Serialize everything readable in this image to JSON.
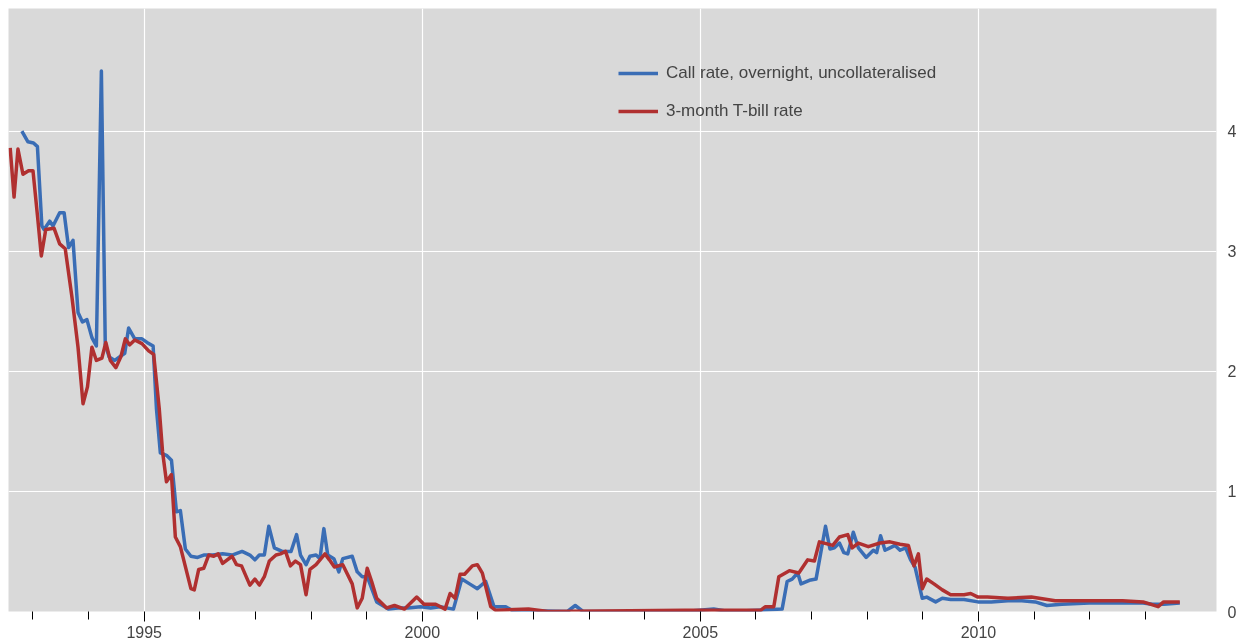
{
  "chart_data": {
    "type": "line",
    "xlim": [
      1992.56,
      2014.28
    ],
    "ylim": [
      0,
      5.02
    ],
    "xticks": [
      {
        "value": 1993,
        "label": null
      },
      {
        "value": 1994,
        "label": null
      },
      1995,
      {
        "value": 1996,
        "label": null
      },
      {
        "value": 1997,
        "label": null
      },
      {
        "value": 1998,
        "label": null
      },
      {
        "value": 1999,
        "label": null
      },
      2000,
      {
        "value": 2001,
        "label": null
      },
      {
        "value": 2002,
        "label": null
      },
      {
        "value": 2003,
        "label": null
      },
      {
        "value": 2004,
        "label": null
      },
      2005,
      {
        "value": 2006,
        "label": null
      },
      {
        "value": 2007,
        "label": null
      },
      {
        "value": 2008,
        "label": null
      },
      {
        "value": 2009,
        "label": null
      },
      2010,
      {
        "value": 2011,
        "label": null
      },
      {
        "value": 2012,
        "label": null
      },
      {
        "value": 2013,
        "label": null
      }
    ],
    "yticks": [
      0,
      1,
      2,
      3,
      4
    ],
    "grid": true,
    "legend": "top right",
    "marker": "none",
    "line_style": "solid",
    "series": [
      {
        "name": "Call rate, overnight, uncollateralised",
        "color": "#3a6db5",
        "x": [
          1992.8,
          1992.91,
          1993.01,
          1993.08,
          1993.16,
          1993.2,
          1993.3,
          1993.36,
          1993.48,
          1993.56,
          1993.64,
          1993.72,
          1993.81,
          1993.89,
          1993.97,
          1994.06,
          1994.14,
          1994.23,
          1994.3,
          1994.37,
          1994.47,
          1994.65,
          1994.72,
          1994.83,
          1994.96,
          1995.05,
          1995.16,
          1995.22,
          1995.29,
          1995.4,
          1995.49,
          1995.58,
          1995.65,
          1995.74,
          1995.84,
          1995.96,
          1996.07,
          1996.23,
          1996.41,
          1996.58,
          1996.76,
          1996.9,
          1996.99,
          1997.07,
          1997.16,
          1997.24,
          1997.34,
          1997.48,
          1997.64,
          1997.74,
          1997.81,
          1997.91,
          1997.98,
          1998.09,
          1998.16,
          1998.23,
          1998.3,
          1998.41,
          1998.5,
          1998.57,
          1998.74,
          1998.83,
          1998.92,
          1999.01,
          1999.18,
          1999.39,
          1999.56,
          1999.74,
          1999.97,
          2000.15,
          2000.32,
          2000.56,
          2000.71,
          2000.85,
          2000.99,
          2001.14,
          2001.29,
          2001.5,
          2001.61,
          2002.61,
          2002.75,
          2002.89,
          2004.72,
          2005.24,
          2005.51,
          2006.47,
          2006.56,
          2006.65,
          2006.75,
          2006.81,
          2006.96,
          2007.08,
          2007.25,
          2007.33,
          2007.41,
          2007.5,
          2007.58,
          2007.65,
          2007.75,
          2007.84,
          2007.98,
          2008.11,
          2008.17,
          2008.24,
          2008.32,
          2008.41,
          2008.5,
          2008.59,
          2008.69,
          2008.78,
          2008.86,
          2008.99,
          2009.07,
          2009.23,
          2009.35,
          2009.5,
          2009.74,
          2009.99,
          2010.23,
          2010.53,
          2010.78,
          2011.02,
          2011.23,
          2011.5,
          2011.99,
          2012.46,
          2012.96,
          2013.13,
          2013.33,
          2013.62
        ],
        "values": [
          4.0,
          3.91,
          3.9,
          3.87,
          3.21,
          3.18,
          3.25,
          3.21,
          3.32,
          3.32,
          3.03,
          3.09,
          2.49,
          2.41,
          2.43,
          2.28,
          2.21,
          4.5,
          2.22,
          2.12,
          2.09,
          2.15,
          2.36,
          2.27,
          2.27,
          2.24,
          2.21,
          1.69,
          1.32,
          1.3,
          1.26,
          0.83,
          0.84,
          0.52,
          0.46,
          0.45,
          0.47,
          0.47,
          0.48,
          0.47,
          0.5,
          0.47,
          0.43,
          0.47,
          0.47,
          0.71,
          0.53,
          0.5,
          0.5,
          0.64,
          0.47,
          0.39,
          0.46,
          0.47,
          0.44,
          0.69,
          0.47,
          0.44,
          0.33,
          0.44,
          0.46,
          0.33,
          0.29,
          0.29,
          0.08,
          0.02,
          0.03,
          0.03,
          0.04,
          0.03,
          0.04,
          0.02,
          0.27,
          0.23,
          0.19,
          0.25,
          0.04,
          0.04,
          0.01,
          0.0,
          0.05,
          0.0,
          0.0,
          0.02,
          0.0,
          0.02,
          0.25,
          0.27,
          0.32,
          0.23,
          0.26,
          0.27,
          0.71,
          0.52,
          0.53,
          0.57,
          0.49,
          0.48,
          0.66,
          0.53,
          0.45,
          0.51,
          0.49,
          0.63,
          0.51,
          0.53,
          0.55,
          0.51,
          0.53,
          0.43,
          0.37,
          0.11,
          0.12,
          0.08,
          0.11,
          0.1,
          0.1,
          0.08,
          0.08,
          0.09,
          0.09,
          0.08,
          0.05,
          0.06,
          0.07,
          0.07,
          0.07,
          0.06,
          0.06,
          0.07
        ]
      },
      {
        "name": "3-month T-bill rate",
        "color": "#b03030",
        "x": [
          1992.59,
          1992.66,
          1992.73,
          1992.82,
          1992.92,
          1993.0,
          1993.08,
          1993.15,
          1993.23,
          1993.38,
          1993.48,
          1993.58,
          1993.7,
          1993.81,
          1993.9,
          1993.98,
          1994.06,
          1994.14,
          1994.24,
          1994.31,
          1994.39,
          1994.49,
          1994.58,
          1994.66,
          1994.74,
          1994.83,
          1994.96,
          1995.08,
          1995.17,
          1995.27,
          1995.33,
          1995.4,
          1995.49,
          1995.56,
          1995.65,
          1995.84,
          1995.9,
          1995.98,
          1996.07,
          1996.16,
          1996.25,
          1996.33,
          1996.41,
          1996.58,
          1996.66,
          1996.75,
          1996.9,
          1996.99,
          1997.07,
          1997.16,
          1997.25,
          1997.37,
          1997.45,
          1997.54,
          1997.63,
          1997.72,
          1997.81,
          1997.91,
          1997.98,
          1998.09,
          1998.25,
          1998.33,
          1998.42,
          1998.57,
          1998.74,
          1998.83,
          1998.92,
          1999.01,
          1999.09,
          1999.18,
          1999.36,
          1999.5,
          1999.68,
          1999.9,
          2000.03,
          2000.24,
          2000.41,
          2000.5,
          2000.59,
          2000.68,
          2000.76,
          2000.9,
          2000.99,
          2001.08,
          2001.23,
          2001.32,
          2001.91,
          2002.26,
          2004.72,
          2006.08,
          2006.17,
          2006.32,
          2006.41,
          2006.6,
          2006.77,
          2006.93,
          2007.05,
          2007.14,
          2007.38,
          2007.5,
          2007.65,
          2007.73,
          2007.84,
          2008.02,
          2008.23,
          2008.41,
          2008.59,
          2008.74,
          2008.84,
          2008.92,
          2008.99,
          2009.07,
          2009.2,
          2009.35,
          2009.5,
          2009.74,
          2009.86,
          2009.99,
          2010.16,
          2010.53,
          2010.95,
          2011.38,
          2011.99,
          2012.59,
          2012.96,
          2013.23,
          2013.33,
          2013.44,
          2013.62
        ],
        "values": [
          3.86,
          3.45,
          3.85,
          3.64,
          3.67,
          3.67,
          3.3,
          2.96,
          3.18,
          3.19,
          3.06,
          3.02,
          2.62,
          2.2,
          1.73,
          1.87,
          2.2,
          2.09,
          2.11,
          2.24,
          2.09,
          2.03,
          2.12,
          2.27,
          2.22,
          2.26,
          2.23,
          2.17,
          2.14,
          1.69,
          1.33,
          1.08,
          1.14,
          0.62,
          0.54,
          0.19,
          0.18,
          0.35,
          0.36,
          0.47,
          0.46,
          0.48,
          0.4,
          0.46,
          0.39,
          0.38,
          0.22,
          0.27,
          0.22,
          0.29,
          0.42,
          0.47,
          0.48,
          0.5,
          0.38,
          0.42,
          0.39,
          0.14,
          0.35,
          0.39,
          0.48,
          0.43,
          0.37,
          0.39,
          0.23,
          0.03,
          0.11,
          0.36,
          0.25,
          0.11,
          0.03,
          0.05,
          0.02,
          0.12,
          0.06,
          0.06,
          0.02,
          0.15,
          0.11,
          0.31,
          0.31,
          0.38,
          0.39,
          0.32,
          0.04,
          0.01,
          0.02,
          0.0,
          0.01,
          0.01,
          0.04,
          0.04,
          0.29,
          0.34,
          0.32,
          0.43,
          0.42,
          0.58,
          0.55,
          0.62,
          0.64,
          0.53,
          0.57,
          0.54,
          0.57,
          0.58,
          0.56,
          0.55,
          0.38,
          0.48,
          0.19,
          0.27,
          0.23,
          0.18,
          0.14,
          0.14,
          0.15,
          0.12,
          0.12,
          0.11,
          0.12,
          0.09,
          0.09,
          0.09,
          0.08,
          0.04,
          0.08,
          0.08,
          0.08
        ]
      }
    ]
  }
}
